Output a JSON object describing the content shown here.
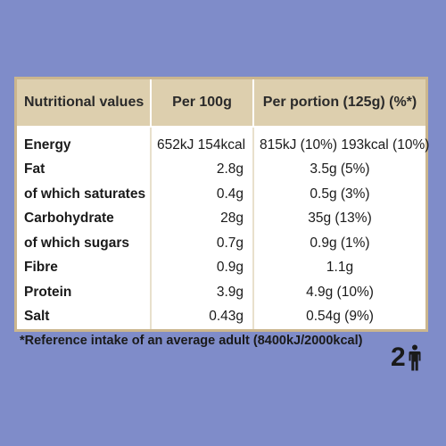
{
  "table": {
    "headers": {
      "name": "Nutritional values",
      "per100": "Per 100g",
      "perPortion": "Per portion (125g) (%*)"
    },
    "rows": [
      {
        "name": "Energy",
        "per100": "652kJ 154kcal",
        "perPortion": "815kJ (10%) 193kcal (10%)"
      },
      {
        "name": "Fat",
        "per100": "2.8g",
        "perPortion": "3.5g (5%)"
      },
      {
        "name": "of which saturates",
        "per100": "0.4g",
        "perPortion": "0.5g (3%)"
      },
      {
        "name": "Carbohydrate",
        "per100": "28g",
        "perPortion": "35g (13%)"
      },
      {
        "name": "of which sugars",
        "per100": "0.7g",
        "perPortion": "0.9g (1%)"
      },
      {
        "name": "Fibre",
        "per100": "0.9g",
        "perPortion": "1.1g"
      },
      {
        "name": "Protein",
        "per100": "3.9g",
        "perPortion": "4.9g (10%)"
      },
      {
        "name": "Salt",
        "per100": "0.43g",
        "perPortion": "0.54g (9%)"
      }
    ]
  },
  "footnote": "*Reference intake of an average adult (8400kJ/2000kcal)",
  "servings": {
    "count": "2",
    "icon": "person-icon"
  },
  "colors": {
    "background": "#7f8cc9",
    "header": "#ddcfae",
    "border": "#cbb68e"
  }
}
